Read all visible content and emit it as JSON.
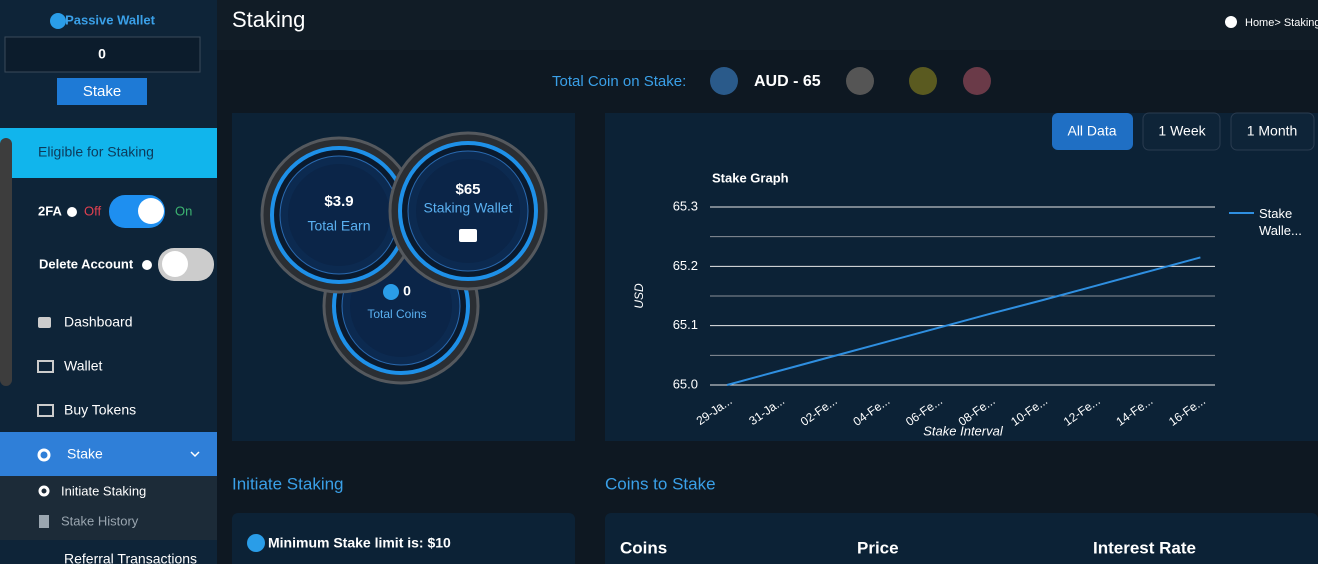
{
  "sidebar": {
    "passive_wallet": "Passive Wallet",
    "wallet_value": "0",
    "stake_button": "Stake",
    "eligible": "Eligible for Staking",
    "twofa": "2FA",
    "off": "Off",
    "on": "On",
    "delete_account": "Delete Account",
    "nav": [
      "Dashboard",
      "Wallet",
      "Buy Tokens",
      "Stake"
    ],
    "submenu": [
      "Initiate Staking",
      "Stake History"
    ],
    "referral": "Referral Transactions"
  },
  "header": {
    "title": "Staking",
    "breadcrumb": "Home> Staking"
  },
  "total_coin": {
    "label": "Total Coin on Stake:",
    "value": "AUD - 65"
  },
  "gauges": [
    {
      "value": "$3.9",
      "label": "Total Earn"
    },
    {
      "value": "$65",
      "label": "Staking Wallet"
    },
    {
      "value": "0",
      "label": "Total Coins"
    }
  ],
  "filters": [
    "All Data",
    "1 Week",
    "1 Month"
  ],
  "chart_data": {
    "type": "line",
    "title": "Stake Graph",
    "x_label": "Stake Interval",
    "y_label": "USD",
    "categories": [
      "29-Ja...",
      "31-Ja...",
      "02-Fe...",
      "04-Fe...",
      "06-Fe...",
      "08-Fe...",
      "10-Fe...",
      "12-Fe...",
      "14-Fe...",
      "16-Fe..."
    ],
    "series": [
      {
        "name": "Stake Walle...",
        "color": "#2f8fe0",
        "values": [
          65.0,
          65.024,
          65.048,
          65.072,
          65.096,
          65.12,
          65.143,
          65.167,
          65.191,
          65.215
        ]
      }
    ],
    "ylim": [
      65.0,
      65.3
    ],
    "yticks": [
      {
        "value": 65,
        "label": "65.0"
      },
      65.1,
      65.2,
      65.3
    ],
    "minor_yticks": [
      65.05,
      65.15,
      65.25
    ],
    "grid": true,
    "legend": "right"
  },
  "initiate": {
    "title": "Initiate Staking",
    "note": "Minimum Stake limit is: $10"
  },
  "coins_to_stake": {
    "title": "Coins to Stake",
    "headers": [
      "Coins",
      "Price",
      "Interest Rate"
    ]
  }
}
